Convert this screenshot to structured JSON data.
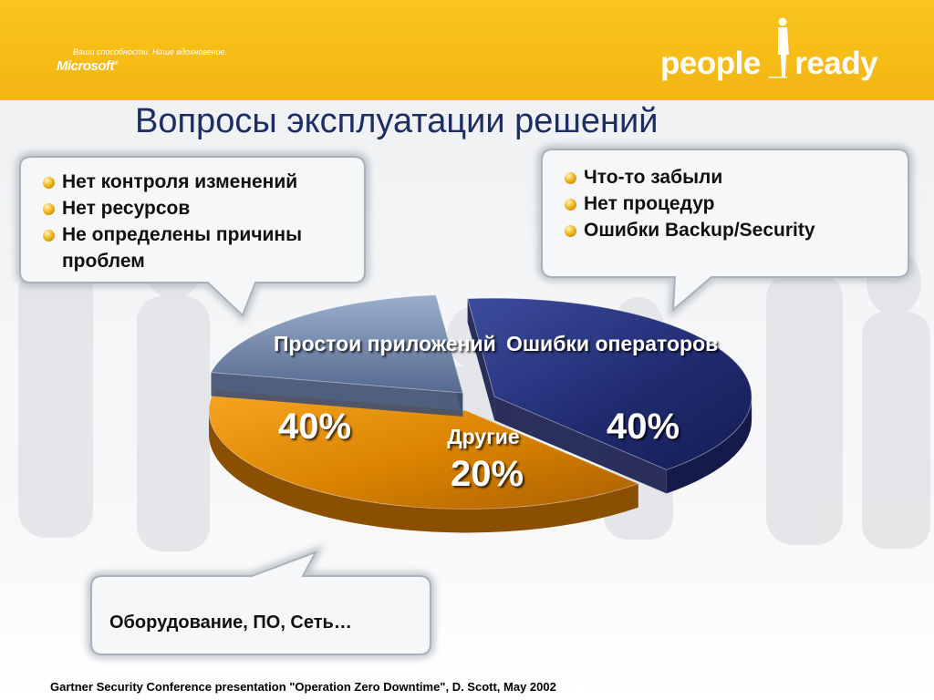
{
  "header": {
    "tagline": "Ваши способности. Наше вдохновение.",
    "ms_logo": "Microsoft",
    "brand_logo": "people _ ready",
    "colors": {
      "bar": "#f7bf1a",
      "title": "#1c2e63"
    }
  },
  "title": "Вопросы эксплуатации решений",
  "callouts": {
    "left": {
      "items": [
        "Нет контроля изменений",
        "Нет ресурсов",
        "Не определены причины проблем"
      ]
    },
    "right": {
      "items": [
        "Что-то забыли",
        "Нет процедур",
        "Ошибки Backup/Security"
      ]
    },
    "bottom": {
      "text": "Оборудование, ПО, Сеть…"
    }
  },
  "chart_data": {
    "type": "pie",
    "slices": [
      {
        "label": "Простои приложений",
        "value": 40,
        "value_label": "40%",
        "color": "#243078"
      },
      {
        "label": "Ошибки операторов",
        "value": 40,
        "value_label": "40%",
        "color": "#e08a00"
      },
      {
        "label": "Другие",
        "value": 20,
        "value_label": "20%",
        "color": "#6f86b0"
      }
    ],
    "style": "3d-exploded"
  },
  "footer": {
    "source": "Gartner Security Conference presentation \"Operation Zero Downtime\", D. Scott, May 2002"
  }
}
